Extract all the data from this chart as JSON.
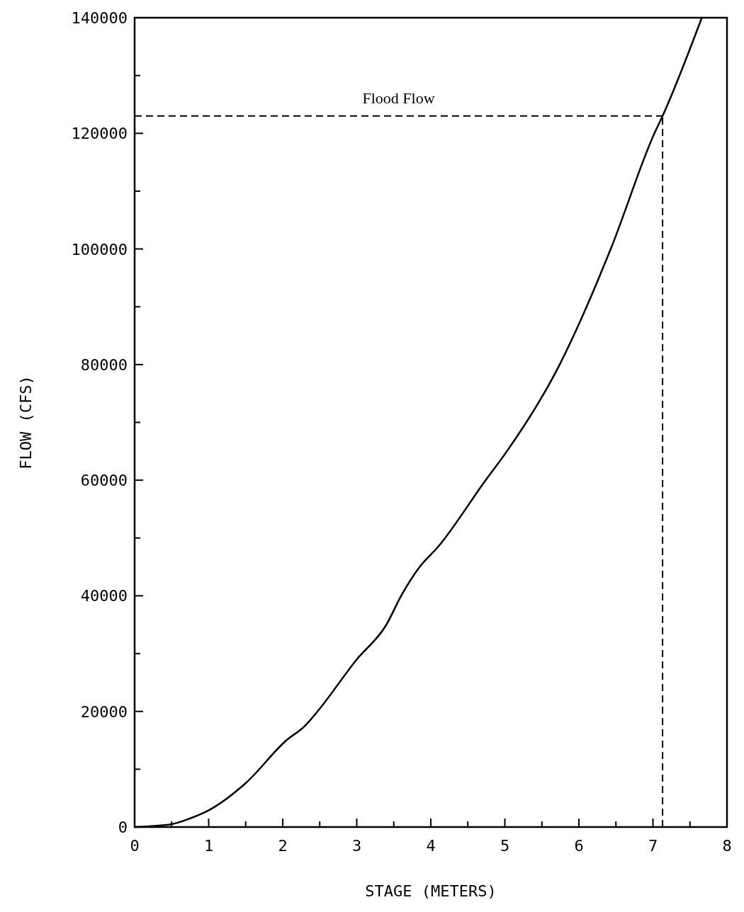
{
  "chart_data": {
    "type": "line",
    "xlabel": "STAGE (METERS)",
    "ylabel": "FLOW (CFS)",
    "x": [
      0,
      0.5,
      0.75,
      1.0,
      1.5,
      2.05,
      2.3,
      2.47,
      3.0,
      3.4,
      3.6,
      3.85,
      4.1,
      4.74,
      5.0,
      5.74,
      6.0,
      6.43,
      7.02,
      7.13,
      7.66
    ],
    "series": [
      {
        "color": "#000000",
        "values": [
          0,
          500,
          1500,
          2900,
          7600,
          15000,
          17500,
          20000,
          29000,
          35000,
          40000,
          45000,
          48500,
          60000,
          64500,
          80000,
          87000,
          100000,
          120000,
          123000,
          140000
        ]
      }
    ],
    "xlim": [
      0,
      8
    ],
    "ylim": [
      0,
      140000
    ],
    "xticks": [
      0,
      {
        "value": 0.5,
        "label": null
      },
      1,
      {
        "value": 1.5,
        "label": null
      },
      2,
      {
        "value": 2.5,
        "label": null
      },
      3,
      {
        "value": 3.5,
        "label": null
      },
      4,
      {
        "value": 4.5,
        "label": null
      },
      5,
      {
        "value": 5.5,
        "label": null
      },
      6,
      {
        "value": 6.5,
        "label": null
      },
      7,
      {
        "value": 7.5,
        "label": null
      },
      8
    ],
    "yticks": [
      0,
      {
        "value": 10000,
        "label": null
      },
      20000,
      {
        "value": 30000,
        "label": null
      },
      40000,
      {
        "value": 50000,
        "label": null
      },
      60000,
      {
        "value": 70000,
        "label": null
      },
      80000,
      {
        "value": 90000,
        "label": null
      },
      100000,
      {
        "value": 110000,
        "label": null
      },
      120000,
      {
        "value": 130000,
        "label": null
      },
      140000
    ],
    "ref_lines": [
      {
        "axis": "y",
        "value": 123000,
        "label": "Flood Flow",
        "line_style": "dashed"
      },
      {
        "axis": "x",
        "value": 7.13,
        "label": null,
        "line_style": "dashed"
      }
    ],
    "grid": false,
    "marker": "none",
    "line_style": "solid"
  }
}
